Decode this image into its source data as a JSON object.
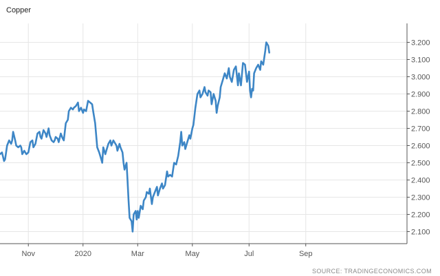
{
  "chart_data": {
    "type": "line",
    "title": "Copper",
    "source": "SOURCE: TRADINGECONOMICS.COM",
    "xlabel": "",
    "ylabel": "",
    "ylim": [
      2.03,
      3.31
    ],
    "y_axis_position": "right",
    "grid": true,
    "y_ticks": [
      2.1,
      2.2,
      2.3,
      2.4,
      2.5,
      2.6,
      2.7,
      2.8,
      2.9,
      3.0,
      3.1,
      3.2
    ],
    "y_tick_labels": [
      "2.100",
      "2.200",
      "2.300",
      "2.400",
      "2.500",
      "2.600",
      "2.700",
      "2.800",
      "2.900",
      "3.000",
      "3.100",
      "3.200"
    ],
    "x_range": [
      -37,
      365
    ],
    "x_ticks": [
      {
        "label": "Nov",
        "x": -9
      },
      {
        "label": "2020",
        "x": 45
      },
      {
        "label": "Mar",
        "x": 99
      },
      {
        "label": "May",
        "x": 153
      },
      {
        "label": "Jul",
        "x": 209
      },
      {
        "label": "Sep",
        "x": 265
      }
    ],
    "series": [
      {
        "color": "#3d86c6",
        "points": [
          [
            -37,
            2.55
          ],
          [
            -35,
            2.56
          ],
          [
            -33,
            2.51
          ],
          [
            -32,
            2.52
          ],
          [
            -30,
            2.6
          ],
          [
            -28,
            2.63
          ],
          [
            -26,
            2.61
          ],
          [
            -25,
            2.63
          ],
          [
            -24,
            2.68
          ],
          [
            -22,
            2.63
          ],
          [
            -21,
            2.6
          ],
          [
            -19,
            2.59
          ],
          [
            -17,
            2.6
          ],
          [
            -16,
            2.59
          ],
          [
            -15,
            2.55
          ],
          [
            -13,
            2.57
          ],
          [
            -11,
            2.55
          ],
          [
            -9,
            2.56
          ],
          [
            -7,
            2.62
          ],
          [
            -5,
            2.63
          ],
          [
            -4,
            2.59
          ],
          [
            -2,
            2.61
          ],
          [
            0,
            2.67
          ],
          [
            2,
            2.68
          ],
          [
            3,
            2.65
          ],
          [
            4,
            2.64
          ],
          [
            6,
            2.69
          ],
          [
            8,
            2.67
          ],
          [
            9,
            2.65
          ],
          [
            11,
            2.7
          ],
          [
            12,
            2.66
          ],
          [
            14,
            2.63
          ],
          [
            16,
            2.62
          ],
          [
            17,
            2.63
          ],
          [
            18,
            2.65
          ],
          [
            20,
            2.64
          ],
          [
            21,
            2.62
          ],
          [
            23,
            2.67
          ],
          [
            25,
            2.64
          ],
          [
            26,
            2.63
          ],
          [
            28,
            2.73
          ],
          [
            30,
            2.75
          ],
          [
            31,
            2.8
          ],
          [
            33,
            2.82
          ],
          [
            35,
            2.81
          ],
          [
            36,
            2.82
          ],
          [
            38,
            2.83
          ],
          [
            40,
            2.85
          ],
          [
            41,
            2.8
          ],
          [
            43,
            2.82
          ],
          [
            45,
            2.79
          ],
          [
            46,
            2.81
          ],
          [
            48,
            2.8
          ],
          [
            50,
            2.86
          ],
          [
            52,
            2.85
          ],
          [
            54,
            2.84
          ],
          [
            55,
            2.8
          ],
          [
            57,
            2.73
          ],
          [
            59,
            2.59
          ],
          [
            61,
            2.56
          ],
          [
            63,
            2.52
          ],
          [
            64,
            2.5
          ],
          [
            65,
            2.59
          ],
          [
            67,
            2.55
          ],
          [
            68,
            2.57
          ],
          [
            70,
            2.61
          ],
          [
            72,
            2.63
          ],
          [
            73,
            2.6
          ],
          [
            75,
            2.63
          ],
          [
            76,
            2.62
          ],
          [
            78,
            2.6
          ],
          [
            79,
            2.57
          ],
          [
            81,
            2.61
          ],
          [
            82,
            2.59
          ],
          [
            84,
            2.56
          ],
          [
            85,
            2.5
          ],
          [
            86,
            2.46
          ],
          [
            88,
            2.5
          ],
          [
            89,
            2.39
          ],
          [
            90,
            2.28
          ],
          [
            91,
            2.18
          ],
          [
            93,
            2.16
          ],
          [
            94,
            2.1
          ],
          [
            95,
            2.2
          ],
          [
            97,
            2.22
          ],
          [
            98,
            2.17
          ],
          [
            99,
            2.22
          ],
          [
            100,
            2.18
          ],
          [
            102,
            2.25
          ],
          [
            104,
            2.23
          ],
          [
            105,
            2.28
          ],
          [
            107,
            2.3
          ],
          [
            108,
            2.33
          ],
          [
            110,
            2.32
          ],
          [
            111,
            2.35
          ],
          [
            113,
            2.26
          ],
          [
            114,
            2.3
          ],
          [
            116,
            2.33
          ],
          [
            118,
            2.36
          ],
          [
            119,
            2.31
          ],
          [
            121,
            2.35
          ],
          [
            123,
            2.38
          ],
          [
            124,
            2.35
          ],
          [
            126,
            2.37
          ],
          [
            128,
            2.45
          ],
          [
            129,
            2.42
          ],
          [
            131,
            2.43
          ],
          [
            133,
            2.42
          ],
          [
            135,
            2.5
          ],
          [
            137,
            2.49
          ],
          [
            139,
            2.54
          ],
          [
            141,
            2.62
          ],
          [
            142,
            2.68
          ],
          [
            143,
            2.6
          ],
          [
            145,
            2.62
          ],
          [
            146,
            2.58
          ],
          [
            148,
            2.62
          ],
          [
            150,
            2.66
          ],
          [
            151,
            2.64
          ],
          [
            153,
            2.7
          ],
          [
            154,
            2.72
          ],
          [
            156,
            2.82
          ],
          [
            158,
            2.9
          ],
          [
            160,
            2.92
          ],
          [
            161,
            2.88
          ],
          [
            163,
            2.9
          ],
          [
            165,
            2.94
          ],
          [
            166,
            2.91
          ],
          [
            168,
            2.89
          ],
          [
            169,
            2.92
          ],
          [
            171,
            2.91
          ],
          [
            172,
            2.84
          ],
          [
            174,
            2.9
          ],
          [
            176,
            2.86
          ],
          [
            177,
            2.79
          ],
          [
            178,
            2.83
          ],
          [
            180,
            2.88
          ],
          [
            181,
            2.94
          ],
          [
            183,
            2.98
          ],
          [
            185,
            3.02
          ],
          [
            187,
            2.99
          ],
          [
            189,
            3.05
          ],
          [
            190,
            3.0
          ],
          [
            192,
            2.97
          ],
          [
            194,
            3.04
          ],
          [
            196,
            3.06
          ],
          [
            198,
            2.95
          ],
          [
            199,
            3.02
          ],
          [
            201,
            2.95
          ],
          [
            203,
            3.08
          ],
          [
            205,
            3.07
          ],
          [
            207,
            2.97
          ],
          [
            209,
            3.03
          ],
          [
            210,
            2.92
          ],
          [
            211,
            2.88
          ],
          [
            212,
            2.93
          ],
          [
            213,
            2.92
          ],
          [
            214,
            3.02
          ],
          [
            216,
            3.05
          ],
          [
            218,
            3.07
          ],
          [
            220,
            3.04
          ],
          [
            221,
            3.09
          ],
          [
            223,
            3.07
          ],
          [
            225,
            3.15
          ],
          [
            226,
            3.2
          ],
          [
            228,
            3.18
          ],
          [
            229,
            3.14
          ]
        ]
      }
    ]
  }
}
